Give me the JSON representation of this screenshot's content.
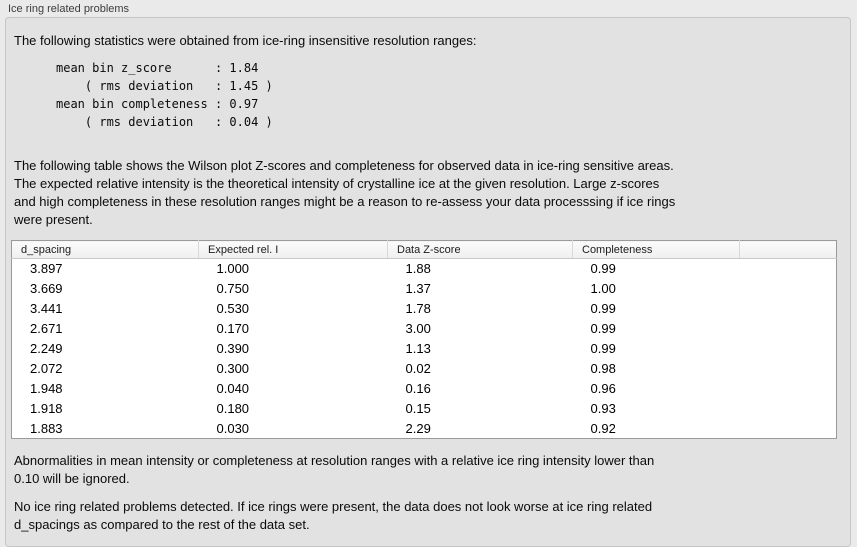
{
  "panel": {
    "title": "Ice ring related problems"
  },
  "intro": {
    "text": "The following statistics were obtained from ice-ring insensitive resolution ranges:"
  },
  "stats_block": {
    "text": "mean bin z_score      : 1.84\n    ( rms deviation   : 1.45 )\nmean bin completeness : 0.97\n    ( rms deviation   : 0.04 )"
  },
  "description": {
    "text": "The following table shows the Wilson plot Z-scores and completeness for observed data in ice-ring sensitive areas.\nThe expected relative intensity is the theoretical intensity of crystalline ice at the given resolution. Large z-scores\nand high completeness in these resolution ranges might be a reason to re-assess your data processsing if ice rings\nwere present."
  },
  "table": {
    "columns": [
      "d_spacing",
      "Expected rel. I",
      "Data Z-score",
      "Completeness"
    ],
    "rows": [
      [
        "3.897",
        "1.000",
        "1.88",
        "0.99"
      ],
      [
        "3.669",
        "0.750",
        "1.37",
        "1.00"
      ],
      [
        "3.441",
        "0.530",
        "1.78",
        "0.99"
      ],
      [
        "2.671",
        "0.170",
        "3.00",
        "0.99"
      ],
      [
        "2.249",
        "0.390",
        "1.13",
        "0.99"
      ],
      [
        "2.072",
        "0.300",
        "0.02",
        "0.98"
      ],
      [
        "1.948",
        "0.040",
        "0.16",
        "0.96"
      ],
      [
        "1.918",
        "0.180",
        "0.15",
        "0.93"
      ],
      [
        "1.883",
        "0.030",
        "2.29",
        "0.92"
      ]
    ]
  },
  "note_ignore": {
    "text": "Abnormalities in mean intensity or completeness at resolution ranges with a relative ice ring intensity lower than\n0.10 will be ignored."
  },
  "conclusion": {
    "text": "No ice ring related problems detected. If ice rings were present, the data does not look worse at ice ring related\nd_spacings as compared to the rest of the data set."
  }
}
